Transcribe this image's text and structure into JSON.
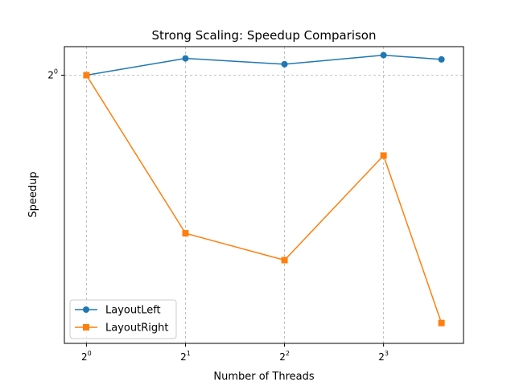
{
  "chart_data": {
    "type": "line",
    "title": "Strong Scaling: Speedup Comparison",
    "xlabel": "Number of Threads",
    "ylabel": "Speedup",
    "x_scale": "log2",
    "y_scale": "log2",
    "x": [
      1,
      2,
      4,
      8,
      12
    ],
    "x_ticks": [
      {
        "value": 1,
        "base": "2",
        "exp": "0"
      },
      {
        "value": 2,
        "base": "2",
        "exp": "1"
      },
      {
        "value": 4,
        "base": "2",
        "exp": "2"
      },
      {
        "value": 8,
        "base": "2",
        "exp": "3"
      }
    ],
    "y_ticks": [
      {
        "value": 1,
        "base": "2",
        "exp": "0"
      }
    ],
    "xlim": [
      0.857,
      14.0
    ],
    "ylim": [
      0.366,
      1.113
    ],
    "grid": true,
    "legend_position": "lower-left",
    "series": [
      {
        "name": "LayoutLeft",
        "color": "#1f77b4",
        "marker": "circle",
        "values": [
          1.0,
          1.065,
          1.042,
          1.078,
          1.061
        ]
      },
      {
        "name": "LayoutRight",
        "color": "#ff7f0e",
        "marker": "square",
        "values": [
          1.0,
          0.553,
          0.5,
          0.74,
          0.395
        ]
      }
    ]
  }
}
